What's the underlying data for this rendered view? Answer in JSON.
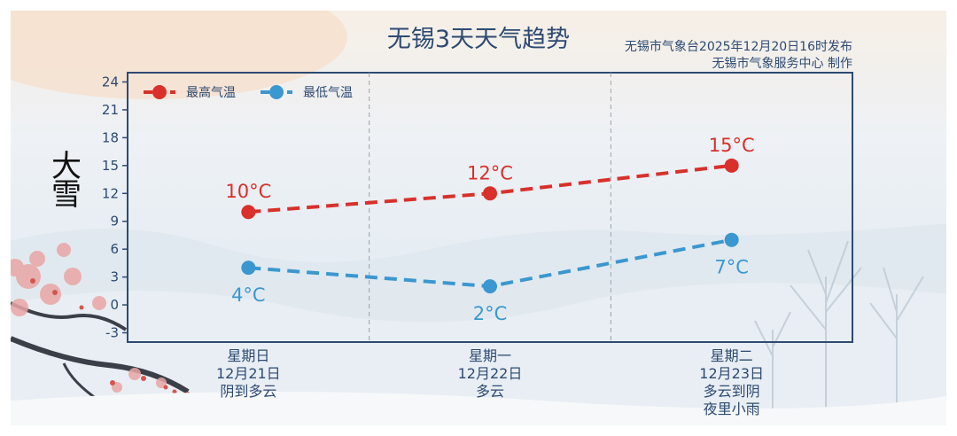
{
  "header": {
    "title": "无锡3天天气趋势",
    "source_line1": "无锡市气象台2025年12月20日16时发布",
    "source_line2": "无锡市气象服务中心 制作"
  },
  "decoration": {
    "calligraphy": "大雪"
  },
  "colors": {
    "high": "#d9302b",
    "low": "#3b97cf",
    "axis": "#2e4a72"
  },
  "days": [
    {
      "weekday": "星期日",
      "date": "12月21日",
      "weather": [
        "阴到多云"
      ]
    },
    {
      "weekday": "星期一",
      "date": "12月22日",
      "weather": [
        "多云"
      ]
    },
    {
      "weekday": "星期二",
      "date": "12月23日",
      "weather": [
        "多云到阴",
        "夜里小雨"
      ]
    }
  ],
  "chart_data": {
    "type": "line",
    "categories": [
      "星期日",
      "星期一",
      "星期二"
    ],
    "ylim": [
      -4,
      25
    ],
    "yticks": [
      -3,
      0,
      3,
      6,
      9,
      12,
      15,
      18,
      21,
      24
    ],
    "grid": "vertical dashed separators",
    "legend": "top-left",
    "series": [
      {
        "name": "最高气温",
        "values": [
          10,
          12,
          15
        ],
        "labels": [
          "10°C",
          "12°C",
          "15°C"
        ],
        "color": "#d9302b",
        "label_position": "above"
      },
      {
        "name": "最低气温",
        "values": [
          4,
          2,
          7
        ],
        "labels": [
          "4°C",
          "2°C",
          "7°C"
        ],
        "color": "#3b97cf",
        "label_position": "below"
      }
    ]
  }
}
